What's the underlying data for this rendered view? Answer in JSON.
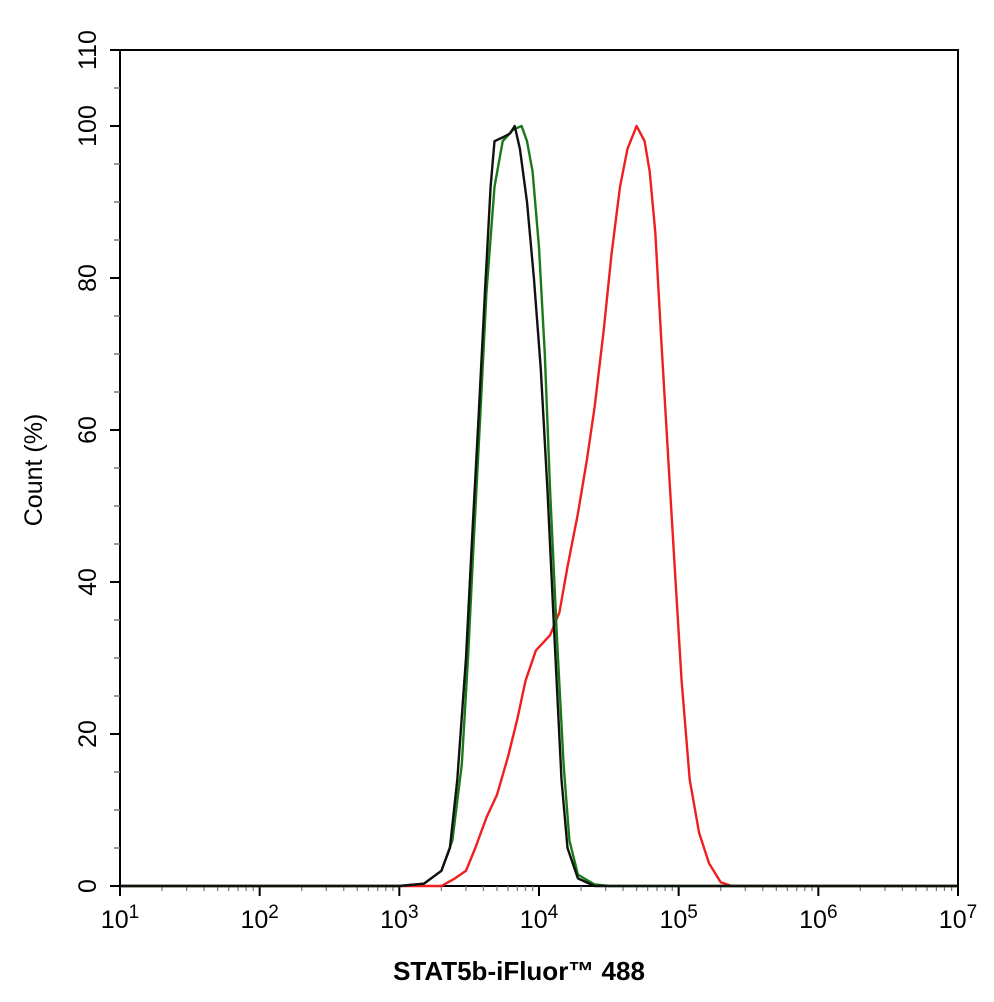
{
  "chart_data": {
    "type": "line",
    "title": "",
    "xlabel": "STAT5b-iFluor™ 488",
    "ylabel": "Count  (%)",
    "x_scale": "log",
    "xlim": [
      10,
      10000000
    ],
    "ylim": [
      0,
      110
    ],
    "x_tick_labels": [
      {
        "base": "10",
        "exp": "1"
      },
      {
        "base": "10",
        "exp": "2"
      },
      {
        "base": "10",
        "exp": "3"
      },
      {
        "base": "10",
        "exp": "4"
      },
      {
        "base": "10",
        "exp": "5"
      },
      {
        "base": "10",
        "exp": "6"
      },
      {
        "base": "10",
        "exp": "7"
      }
    ],
    "y_ticks": [
      "0",
      "20",
      "40",
      "60",
      "80",
      "100",
      "110"
    ],
    "grid": false,
    "legend": "none",
    "series": [
      {
        "color": "#f01e1e",
        "points": [
          [
            2000,
            0
          ],
          [
            2500,
            1
          ],
          [
            3000,
            2
          ],
          [
            3500,
            5
          ],
          [
            4200,
            9
          ],
          [
            5000,
            12
          ],
          [
            6000,
            17
          ],
          [
            7000,
            22
          ],
          [
            8000,
            27
          ],
          [
            9500,
            31
          ],
          [
            12000,
            33
          ],
          [
            14000,
            36
          ],
          [
            16000,
            42
          ],
          [
            19000,
            49
          ],
          [
            22000,
            56
          ],
          [
            25000,
            63
          ],
          [
            29000,
            73
          ],
          [
            33000,
            83
          ],
          [
            38000,
            92
          ],
          [
            43000,
            97
          ],
          [
            50000,
            100
          ],
          [
            57000,
            98
          ],
          [
            62000,
            94
          ],
          [
            68000,
            86
          ],
          [
            75000,
            72
          ],
          [
            85000,
            55
          ],
          [
            95000,
            40
          ],
          [
            105000,
            27
          ],
          [
            120000,
            14
          ],
          [
            140000,
            7
          ],
          [
            165000,
            3
          ],
          [
            200000,
            0.5
          ],
          [
            240000,
            0
          ]
        ]
      },
      {
        "color": "#1a7a1a",
        "points": [
          [
            1000,
            0
          ],
          [
            1500,
            0.3
          ],
          [
            2000,
            2
          ],
          [
            2400,
            6
          ],
          [
            2800,
            16
          ],
          [
            3100,
            30
          ],
          [
            3400,
            45
          ],
          [
            3800,
            62
          ],
          [
            4200,
            78
          ],
          [
            4800,
            92
          ],
          [
            5500,
            98
          ],
          [
            6500,
            99.5
          ],
          [
            7500,
            100
          ],
          [
            8200,
            98
          ],
          [
            9000,
            94
          ],
          [
            10000,
            84
          ],
          [
            11000,
            70
          ],
          [
            12000,
            52
          ],
          [
            13500,
            32
          ],
          [
            15000,
            16
          ],
          [
            16500,
            6
          ],
          [
            19000,
            1.5
          ],
          [
            25000,
            0.2
          ],
          [
            32000,
            0
          ]
        ]
      },
      {
        "color": "#111111",
        "points": [
          [
            1000,
            0
          ],
          [
            1500,
            0.3
          ],
          [
            2000,
            2
          ],
          [
            2300,
            5
          ],
          [
            2600,
            14
          ],
          [
            3000,
            30
          ],
          [
            3300,
            45
          ],
          [
            3700,
            62
          ],
          [
            4100,
            78
          ],
          [
            4500,
            92
          ],
          [
            4800,
            98
          ],
          [
            5500,
            98.5
          ],
          [
            6200,
            99
          ],
          [
            6700,
            100
          ],
          [
            7300,
            97
          ],
          [
            8200,
            90
          ],
          [
            9200,
            80
          ],
          [
            10300,
            68
          ],
          [
            11500,
            52
          ],
          [
            12800,
            34
          ],
          [
            14500,
            14
          ],
          [
            16000,
            5
          ],
          [
            19000,
            1
          ],
          [
            25000,
            0
          ]
        ]
      }
    ]
  }
}
